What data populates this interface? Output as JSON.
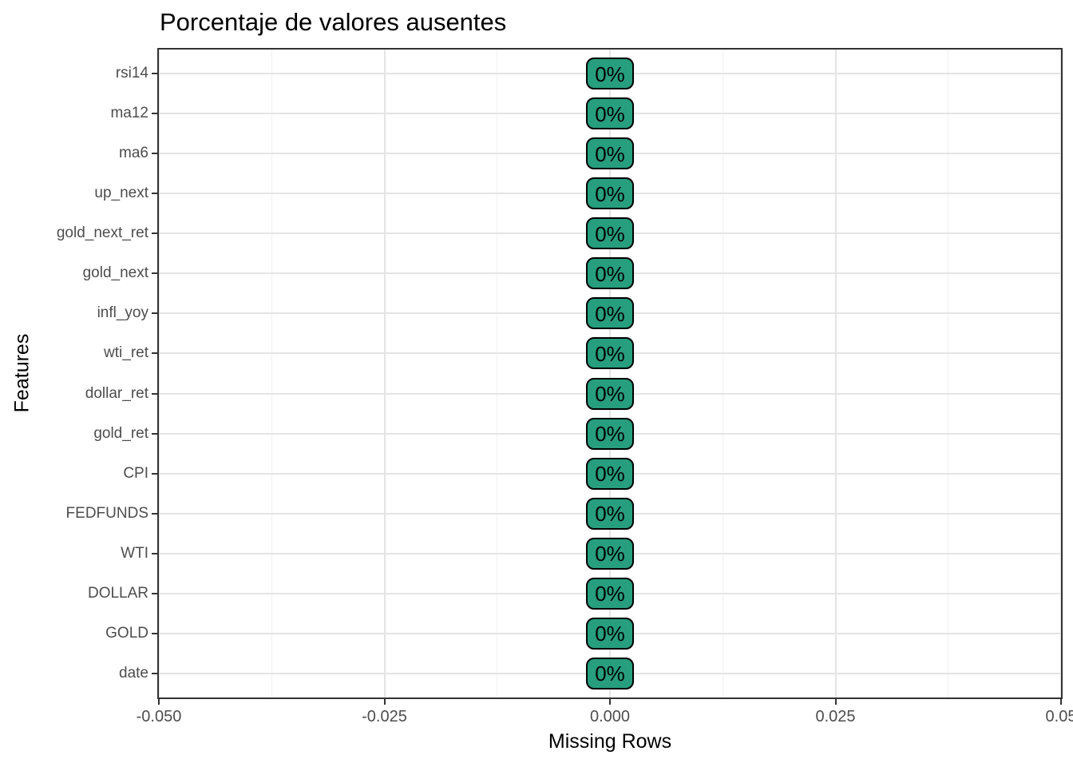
{
  "title": "Porcentaje de valores ausentes",
  "colors": {
    "badge_fill": "#279e7e",
    "badge_border": "#000000",
    "badge_text": "#000000",
    "panel_border": "#333333",
    "grid_major": "#e4e4e4",
    "grid_minor": "#f0f0f0",
    "axis_tick": "#333333",
    "tick_label_text": "#4d4d4d",
    "title_text": "#000000"
  },
  "chart_data": {
    "type": "bar",
    "title": "Porcentaje de valores ausentes",
    "xlabel": "Missing Rows",
    "ylabel": "Features",
    "categories": [
      "rsi14",
      "ma12",
      "ma6",
      "up_next",
      "gold_next_ret",
      "gold_next",
      "infl_yoy",
      "wti_ret",
      "dollar_ret",
      "gold_ret",
      "CPI",
      "FEDFUNDS",
      "WTI",
      "DOLLAR",
      "GOLD",
      "date"
    ],
    "values": [
      0,
      0,
      0,
      0,
      0,
      0,
      0,
      0,
      0,
      0,
      0,
      0,
      0,
      0,
      0,
      0
    ],
    "value_labels": [
      "0%",
      "0%",
      "0%",
      "0%",
      "0%",
      "0%",
      "0%",
      "0%",
      "0%",
      "0%",
      "0%",
      "0%",
      "0%",
      "0%",
      "0%",
      "0%"
    ],
    "xlim": [
      -0.05,
      0.05
    ],
    "x_ticks": [
      -0.05,
      -0.025,
      0,
      0.025,
      0.05
    ],
    "x_tick_labels": [
      "-0.050",
      "-0.025",
      "0.000",
      "0.025",
      "0.05"
    ],
    "grid": true,
    "grid_minor": true,
    "legend": false,
    "orientation": "horizontal",
    "label_style": "rounded-badge"
  }
}
